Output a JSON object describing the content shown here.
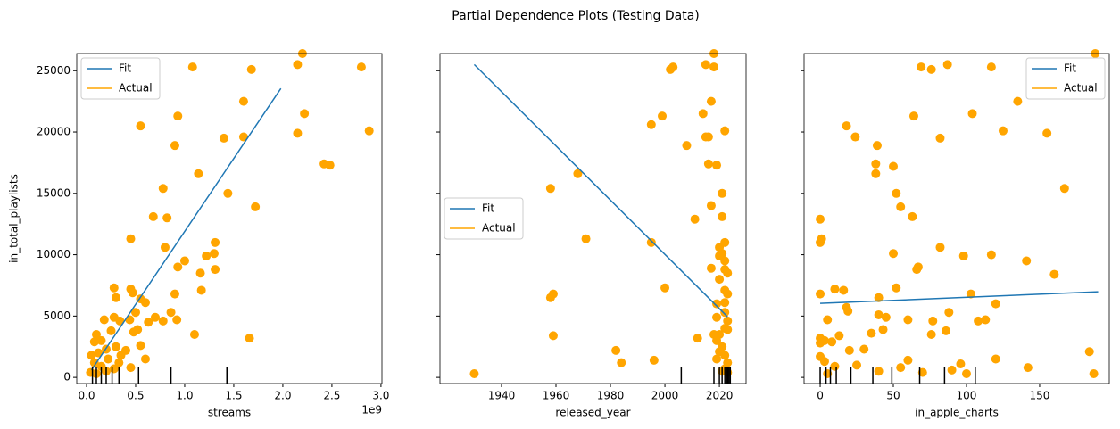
{
  "title": "Partial Dependence Plots (Testing Data)",
  "chart_data": [
    {
      "type": "scatter",
      "xlabel": "streams",
      "ylabel": "in_total_playlists",
      "offset_label": "1e9",
      "legend": "upper left",
      "xlim": [
        -0.1,
        3.01
      ],
      "ylim": [
        -500,
        26400
      ],
      "xticks": [
        {
          "value": 0,
          "label": "0.0"
        },
        0.5,
        {
          "value": 1,
          "label": "1.0"
        },
        1.5,
        {
          "value": 2,
          "label": "2.0"
        },
        2.5,
        {
          "value": 3,
          "label": "3.0"
        }
      ],
      "yticks": [
        0,
        5000,
        10000,
        15000,
        20000,
        25000
      ],
      "deciles": [
        0.06,
        0.1,
        0.15,
        0.2,
        0.26,
        0.33,
        0.53,
        0.86,
        1.43
      ],
      "series": [
        {
          "name": "Fit",
          "color": "#1f77b4",
          "type": "line",
          "x": [
            0.05,
            1.98
          ],
          "values": [
            600,
            23550
          ]
        },
        {
          "name": "Actual",
          "color": "#ffa500",
          "type": "scatter",
          "x": [
            2.8,
            2.15,
            2.2,
            1.08,
            1.68,
            0.55,
            0.93,
            1.6,
            2.22,
            2.15,
            1.6,
            1.4,
            0.9,
            2.88,
            2.42,
            2.48,
            1.14,
            0.78,
            1.44,
            1.72,
            0.68,
            0.82,
            0.45,
            1.31,
            0.8,
            1.0,
            1.3,
            1.22,
            0.93,
            1.31,
            1.16,
            0.28,
            0.45,
            1.17,
            0.47,
            0.9,
            0.3,
            0.55,
            0.6,
            0.5,
            0.86,
            0.28,
            0.18,
            0.7,
            0.34,
            0.44,
            0.78,
            0.92,
            0.63,
            1.1,
            1.66,
            0.48,
            0.52,
            0.1,
            0.25,
            0.15,
            0.08,
            0.2,
            0.3,
            0.4,
            0.55,
            0.05,
            0.12,
            0.22,
            0.35,
            0.08,
            0.15,
            0.28,
            0.04,
            0.1,
            0.2,
            0.33,
            0.6,
            0.45
          ],
          "values": [
            25300,
            25500,
            26400,
            25300,
            25100,
            20500,
            21300,
            22500,
            21500,
            19900,
            19600,
            19500,
            18900,
            20100,
            17400,
            17300,
            16600,
            15400,
            15000,
            13900,
            13100,
            13000,
            11300,
            11000,
            10600,
            9500,
            10100,
            9900,
            9000,
            8800,
            8500,
            7300,
            7200,
            7100,
            6900,
            6800,
            6500,
            6400,
            6100,
            5300,
            5300,
            4900,
            4700,
            4900,
            4600,
            4700,
            4600,
            4700,
            4500,
            3500,
            3200,
            3700,
            3900,
            3500,
            3800,
            3000,
            2900,
            2300,
            2500,
            2200,
            2600,
            1800,
            2000,
            1500,
            1800,
            1200,
            900,
            700,
            400,
            300,
            500,
            1200,
            1500,
            800
          ]
        }
      ]
    },
    {
      "type": "scatter",
      "xlabel": "released_year",
      "legend": "center left",
      "xlim": [
        1917.4,
        2029.8
      ],
      "ylim": [
        -500,
        26400
      ],
      "xticks": [
        1940,
        1960,
        1980,
        2000,
        2020
      ],
      "yticks": [
        0,
        5000,
        10000,
        15000,
        20000,
        25000
      ],
      "deciles": [
        2006,
        2018,
        2020,
        2021,
        2022,
        2022.5,
        2023,
        2023.5,
        2024
      ],
      "series": [
        {
          "name": "Fit",
          "color": "#1f77b4",
          "type": "line",
          "x": [
            1930,
            2023
          ],
          "values": [
            25500,
            4940
          ]
        },
        {
          "name": "Actual",
          "color": "#ffa500",
          "type": "scatter",
          "x": [
            1930,
            1958,
            1958,
            1959,
            1959,
            1968,
            1971,
            1982,
            1984,
            1995,
            1995,
            1996,
            1999,
            2000,
            2002,
            2003,
            2008,
            2011,
            2012,
            2014,
            2015,
            2015,
            2016,
            2017,
            2016,
            2017,
            2017,
            2018,
            2018,
            2019,
            2019,
            2020,
            2020,
            2021,
            2021,
            2021,
            2022,
            2022,
            2022,
            2022,
            2022,
            2022,
            2022,
            2023,
            2023,
            2023,
            2023,
            2020,
            2021,
            2022,
            2023,
            2023,
            2022,
            2021,
            2020,
            2019,
            2019,
            2018,
            2019,
            2020,
            2022
          ],
          "values": [
            300,
            15400,
            6500,
            6800,
            3400,
            16600,
            11300,
            2200,
            1200,
            20600,
            11000,
            1400,
            21300,
            7300,
            25100,
            25300,
            18900,
            12900,
            3200,
            21500,
            19600,
            25500,
            19600,
            22500,
            17400,
            14000,
            8900,
            26400,
            25300,
            17300,
            4900,
            9900,
            10600,
            15000,
            13100,
            10100,
            20100,
            11000,
            9500,
            8800,
            7100,
            6100,
            5300,
            8500,
            6800,
            4600,
            3900,
            3500,
            2500,
            1800,
            1200,
            400,
            700,
            500,
            2100,
            1500,
            3000,
            3500,
            6000,
            8000,
            4000
          ]
        }
      ]
    },
    {
      "type": "scatter",
      "xlabel": "in_apple_charts",
      "legend": "upper right",
      "xlim": [
        -11,
        197.6
      ],
      "ylim": [
        -500,
        26400
      ],
      "xticks": [
        0,
        50,
        100,
        150
      ],
      "yticks": [
        0,
        5000,
        10000,
        15000,
        20000,
        25000
      ],
      "deciles": [
        0,
        4,
        7,
        11,
        21,
        36,
        49,
        68,
        85,
        106
      ],
      "series": [
        {
          "name": "Fit",
          "color": "#1f77b4",
          "type": "line",
          "x": [
            0,
            190
          ],
          "values": [
            6030,
            6980
          ]
        },
        {
          "name": "Actual",
          "color": "#ffa500",
          "type": "scatter",
          "x": [
            0,
            0,
            1,
            0,
            69,
            76,
            87,
            104,
            117,
            188,
            135,
            125,
            155,
            18,
            24,
            64,
            82,
            39,
            38,
            38,
            50,
            52,
            55,
            63,
            167,
            117,
            98,
            82,
            50,
            141,
            160,
            66,
            67,
            10,
            16,
            52,
            40,
            103,
            18,
            19,
            120,
            60,
            40,
            45,
            108,
            113,
            88,
            5,
            0,
            0,
            3,
            8,
            13,
            20,
            30,
            35,
            43,
            77,
            76,
            86,
            0,
            3,
            10,
            25,
            40,
            55,
            70,
            90,
            100,
            142,
            184,
            187,
            120,
            96,
            60,
            5
          ],
          "values": [
            12900,
            11000,
            11300,
            6800,
            25300,
            25100,
            25500,
            21500,
            25300,
            26400,
            22500,
            20100,
            19900,
            20500,
            19600,
            21300,
            19500,
            18900,
            17400,
            16600,
            17200,
            15000,
            13900,
            13100,
            15400,
            10000,
            9900,
            10600,
            10100,
            9500,
            8400,
            8800,
            9000,
            7200,
            7100,
            7300,
            6500,
            6800,
            5700,
            5400,
            6000,
            4700,
            5100,
            4900,
            4600,
            4700,
            5300,
            4700,
            3200,
            2800,
            3000,
            2900,
            3400,
            2200,
            2300,
            3600,
            3900,
            4600,
            3500,
            3800,
            1700,
            1300,
            900,
            1000,
            500,
            800,
            400,
            600,
            300,
            800,
            2100,
            300,
            1500,
            1100,
            1400,
            300
          ]
        }
      ]
    }
  ]
}
